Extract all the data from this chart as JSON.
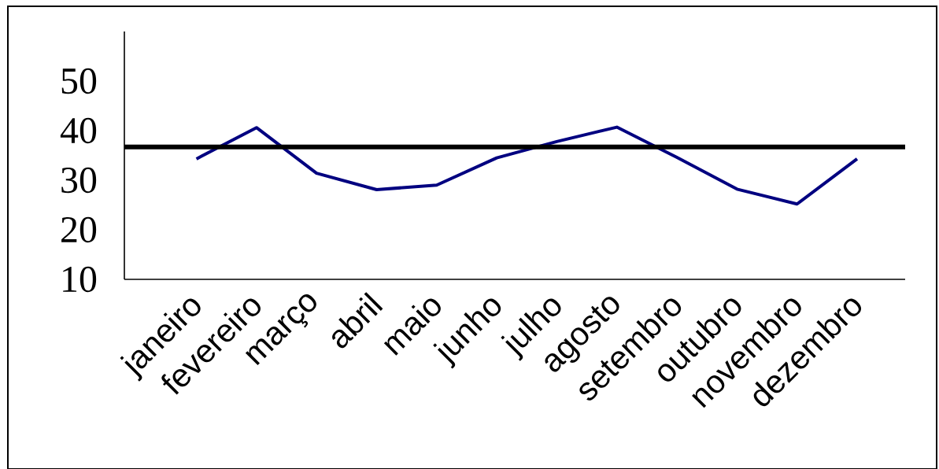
{
  "chart_data": {
    "type": "line",
    "categories": [
      "janeiro",
      "fevereiro",
      "março",
      "abril",
      "maio",
      "junho",
      "julho",
      "agosto",
      "setembro",
      "outubro",
      "novembro",
      "dezembro"
    ],
    "series": [
      {
        "color": "#000080",
        "values": [
          34.3,
          40.6,
          31.4,
          28.1,
          29.0,
          34.5,
          37.8,
          40.7,
          34.6,
          28.2,
          25.2,
          34.3
        ]
      }
    ],
    "ylim": [
      10,
      60
    ],
    "yticks": [
      10,
      20,
      30,
      40,
      50
    ],
    "ref_lines": [
      {
        "axis": "y",
        "value": 36.7,
        "color": "#000000"
      }
    ]
  }
}
